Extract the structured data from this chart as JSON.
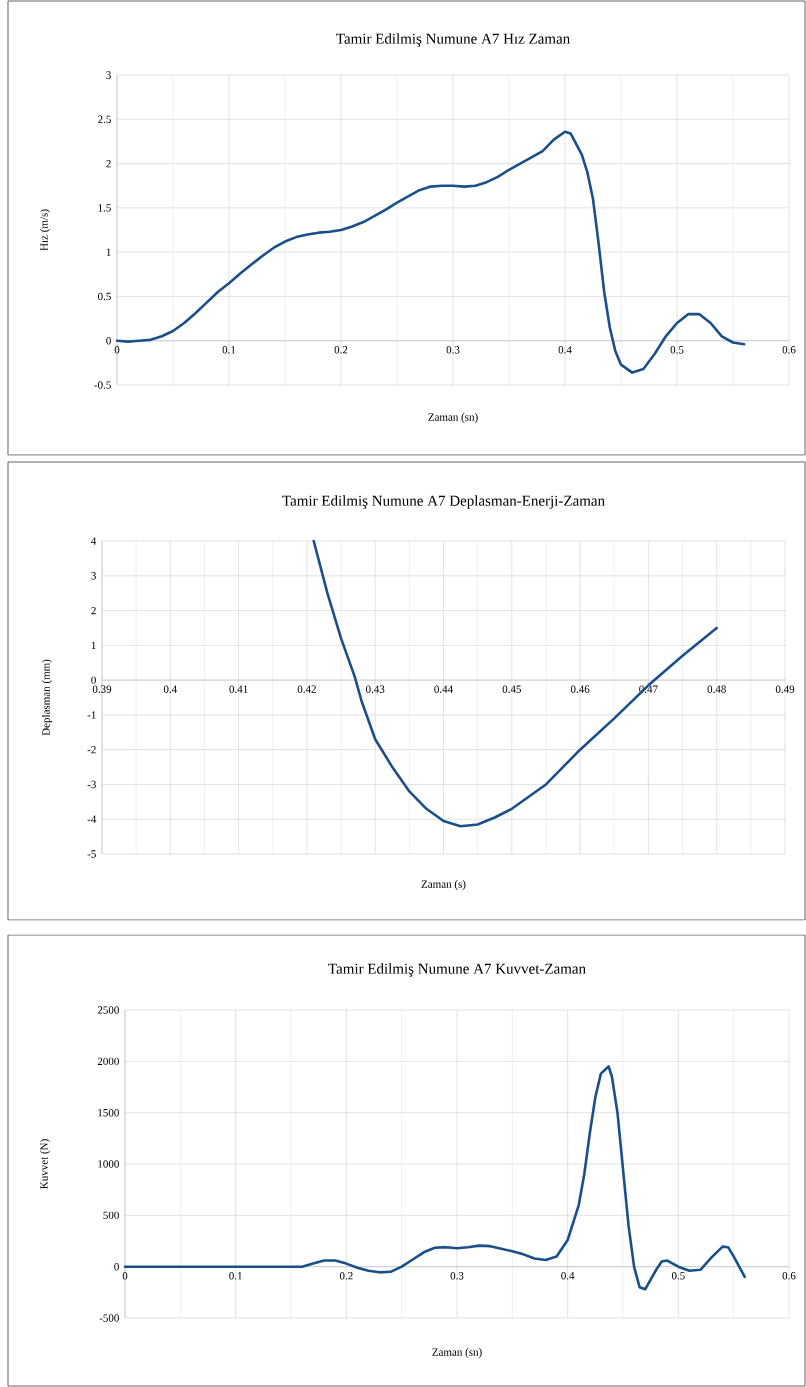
{
  "chart_data": [
    {
      "type": "line",
      "title": "Tamir Edilmiş Numune A7 Hız Zaman",
      "xlabel": "Zaman (sn)",
      "ylabel": "Hız (m/s)",
      "color": "#1b4f8a",
      "grid": true,
      "x": [
        0,
        0.01,
        0.02,
        0.03,
        0.04,
        0.05,
        0.06,
        0.07,
        0.08,
        0.09,
        0.1,
        0.11,
        0.12,
        0.13,
        0.14,
        0.15,
        0.16,
        0.17,
        0.18,
        0.19,
        0.2,
        0.21,
        0.22,
        0.23,
        0.24,
        0.25,
        0.26,
        0.27,
        0.28,
        0.29,
        0.3,
        0.31,
        0.32,
        0.33,
        0.34,
        0.35,
        0.36,
        0.37,
        0.38,
        0.39,
        0.4,
        0.405,
        0.41,
        0.415,
        0.42,
        0.425,
        0.43,
        0.435,
        0.44,
        0.445,
        0.45,
        0.46,
        0.47,
        0.48,
        0.49,
        0.5,
        0.51,
        0.52,
        0.53,
        0.54,
        0.55,
        0.56
      ],
      "values": [
        0,
        -0.01,
        0,
        0.01,
        0.05,
        0.11,
        0.2,
        0.31,
        0.43,
        0.55,
        0.65,
        0.76,
        0.86,
        0.96,
        1.05,
        1.12,
        1.17,
        1.2,
        1.22,
        1.23,
        1.25,
        1.29,
        1.34,
        1.41,
        1.48,
        1.56,
        1.63,
        1.7,
        1.74,
        1.75,
        1.75,
        1.74,
        1.75,
        1.79,
        1.85,
        1.93,
        2,
        2.07,
        2.14,
        2.27,
        2.36,
        2.34,
        2.22,
        2.1,
        1.9,
        1.6,
        1.1,
        0.55,
        0.15,
        -0.12,
        -0.27,
        -0.36,
        -0.32,
        -0.15,
        0.05,
        0.2,
        0.3,
        0.3,
        0.2,
        0.05,
        -0.02,
        -0.04
      ],
      "xlim": [
        0,
        0.6
      ],
      "ylim": [
        -0.5,
        3
      ],
      "xticks": [
        0,
        0.1,
        0.2,
        0.3,
        0.4,
        0.5,
        0.6
      ],
      "yticks": [
        -0.5,
        0,
        0.5,
        1,
        1.5,
        2,
        2.5,
        3
      ]
    },
    {
      "type": "line",
      "title": "Tamir Edilmiş Numune A7 Deplasman-Enerji-Zaman",
      "xlabel": "Zaman (s)",
      "ylabel": "Deplasman (mm)",
      "color": "#1b4f8a",
      "grid": true,
      "x": [
        0.421,
        0.423,
        0.425,
        0.427,
        0.428,
        0.43,
        0.4325,
        0.435,
        0.4375,
        0.44,
        0.4425,
        0.445,
        0.4475,
        0.45,
        0.455,
        0.46,
        0.465,
        0.47,
        0.475,
        0.48
      ],
      "values": [
        4,
        2.5,
        1.2,
        0.1,
        -0.6,
        -1.7,
        -2.5,
        -3.2,
        -3.7,
        -4.05,
        -4.2,
        -4.15,
        -3.95,
        -3.7,
        -3,
        -2,
        -1.1,
        -0.15,
        0.7,
        1.5
      ],
      "xlim": [
        0.39,
        0.49
      ],
      "ylim": [
        -5,
        4
      ],
      "xticks": [
        0.39,
        0.4,
        0.41,
        0.42,
        0.43,
        0.44,
        0.45,
        0.46,
        0.47,
        0.48,
        0.49
      ],
      "yticks": [
        -5,
        -4,
        -3,
        -2,
        -1,
        0,
        1,
        2,
        3,
        4
      ]
    },
    {
      "type": "line",
      "title": "Tamir Edilmiş Numune A7 Kuvvet-Zaman",
      "xlabel": "Zaman (sn)",
      "ylabel": "Kuvvet (N)",
      "color": "#1b4f8a",
      "grid": true,
      "x": [
        0,
        0.05,
        0.1,
        0.15,
        0.16,
        0.17,
        0.18,
        0.19,
        0.2,
        0.21,
        0.22,
        0.23,
        0.24,
        0.25,
        0.26,
        0.27,
        0.28,
        0.29,
        0.3,
        0.31,
        0.32,
        0.33,
        0.34,
        0.35,
        0.36,
        0.37,
        0.38,
        0.39,
        0.4,
        0.41,
        0.415,
        0.42,
        0.425,
        0.43,
        0.437,
        0.44,
        0.445,
        0.45,
        0.455,
        0.46,
        0.465,
        0.47,
        0.48,
        0.485,
        0.49,
        0.5,
        0.51,
        0.52,
        0.53,
        0.54,
        0.545,
        0.55,
        0.56
      ],
      "values": [
        0,
        0,
        0,
        0,
        0,
        30,
        60,
        60,
        30,
        -10,
        -40,
        -55,
        -50,
        0,
        70,
        140,
        185,
        190,
        180,
        190,
        205,
        200,
        175,
        150,
        120,
        80,
        65,
        100,
        260,
        600,
        900,
        1300,
        1650,
        1880,
        1950,
        1850,
        1500,
        950,
        400,
        0,
        -200,
        -220,
        -30,
        50,
        60,
        0,
        -40,
        -30,
        90,
        195,
        190,
        100,
        -100
      ],
      "xlim": [
        0,
        0.6
      ],
      "ylim": [
        -500,
        2500
      ],
      "xticks": [
        0,
        0.1,
        0.2,
        0.3,
        0.4,
        0.5,
        0.6
      ],
      "yticks": [
        -500,
        0,
        500,
        1000,
        1500,
        2000,
        2500
      ]
    }
  ]
}
